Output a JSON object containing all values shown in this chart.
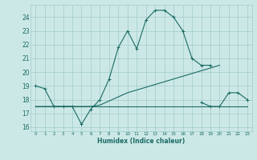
{
  "xlabel": "Humidex (Indice chaleur)",
  "bg_color": "#cce8e6",
  "grid_color": "#a0ccc9",
  "line_color": "#1a6b64",
  "xlim": [
    -0.5,
    23.5
  ],
  "ylim": [
    15.7,
    24.9
  ],
  "yticks": [
    16,
    17,
    18,
    19,
    20,
    21,
    22,
    23,
    24
  ],
  "xticks": [
    0,
    1,
    2,
    3,
    4,
    5,
    6,
    7,
    8,
    9,
    10,
    11,
    12,
    13,
    14,
    15,
    16,
    17,
    18,
    19,
    20,
    21,
    22,
    23
  ],
  "line1_y": [
    19.0,
    18.8,
    17.5,
    17.5,
    17.5,
    16.2,
    17.3,
    18.0,
    19.5,
    21.8,
    23.0,
    21.7,
    23.8,
    24.5,
    24.5,
    24.0,
    23.0,
    21.0,
    20.5,
    20.5,
    null,
    null,
    null,
    null
  ],
  "line2_y": [
    17.5,
    17.5,
    17.5,
    17.5,
    17.5,
    17.5,
    17.5,
    17.5,
    17.5,
    17.5,
    17.5,
    17.5,
    17.5,
    17.5,
    17.5,
    17.5,
    17.5,
    17.5,
    17.5,
    17.5,
    17.5,
    17.5,
    17.5,
    17.5
  ],
  "line3_y": [
    17.5,
    17.5,
    17.5,
    17.5,
    17.5,
    17.5,
    17.5,
    17.6,
    17.9,
    18.2,
    18.5,
    18.7,
    18.9,
    19.1,
    19.3,
    19.5,
    19.7,
    19.9,
    20.1,
    20.3,
    20.5,
    null,
    null,
    null
  ],
  "line4_y": [
    null,
    null,
    null,
    null,
    null,
    null,
    null,
    null,
    null,
    null,
    null,
    null,
    null,
    null,
    null,
    null,
    null,
    null,
    17.8,
    17.5,
    17.5,
    18.5,
    18.5,
    18.0
  ]
}
